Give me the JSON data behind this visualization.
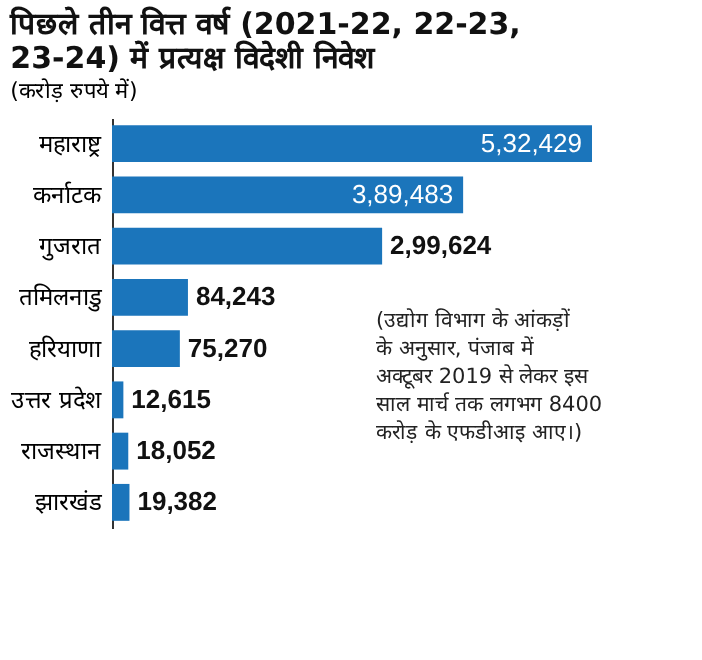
{
  "chart_data": {
    "type": "bar",
    "orientation": "horizontal",
    "title": "पिछले तीन वित्त वर्ष (2021-22, 22-23, 23-24) में प्रत्यक्ष विदेशी निवेश",
    "subtitle": "(करोड़ रुपये में)",
    "categories": [
      "महाराष्ट्र",
      "कर्नाटक",
      "गुजरात",
      "तमिलनाडु",
      "हरियाणा",
      "उत्तर प्रदेश",
      "राजस्थान",
      "झारखंड"
    ],
    "values": [
      532429,
      389483,
      299624,
      84243,
      75270,
      12615,
      18052,
      19382
    ],
    "value_labels": [
      "5,32,429",
      "3,89,483",
      "2,99,624",
      "84,243",
      "75,270",
      "12,615",
      "18,052",
      "19,382"
    ],
    "color": "#1b75bb",
    "annotations": [
      "(उद्योग विभाग के आंकड़ों के अनुसार, पंजाब में अक्टूबर 2019 से लेकर इस साल मार्च तक लगभग 8400 करोड़ के एफडीआइ आए।)"
    ],
    "grid": false
  }
}
